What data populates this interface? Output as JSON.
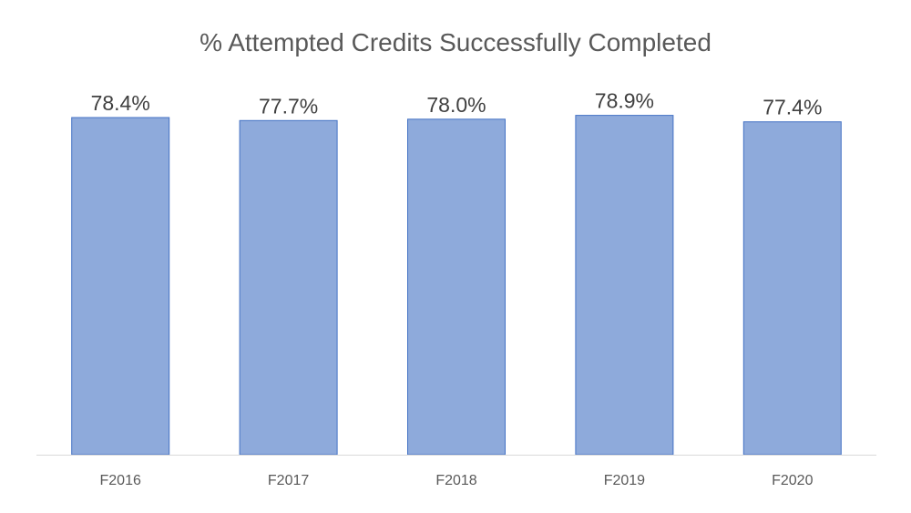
{
  "chart_data": {
    "type": "bar",
    "title": "% Attempted Credits Successfully Completed",
    "xlabel": "",
    "ylabel": "",
    "categories": [
      "F2016",
      "F2017",
      "F2018",
      "F2019",
      "F2020"
    ],
    "values": [
      78.4,
      77.7,
      78.0,
      78.9,
      77.4
    ],
    "data_labels": [
      "78.4%",
      "77.7%",
      "78.0%",
      "78.9%",
      "77.4%"
    ],
    "ylim": [
      0,
      100
    ],
    "grid": false,
    "legend": "none",
    "bar_color": "#8eaadb",
    "bar_edge_color": "#4472c4"
  }
}
